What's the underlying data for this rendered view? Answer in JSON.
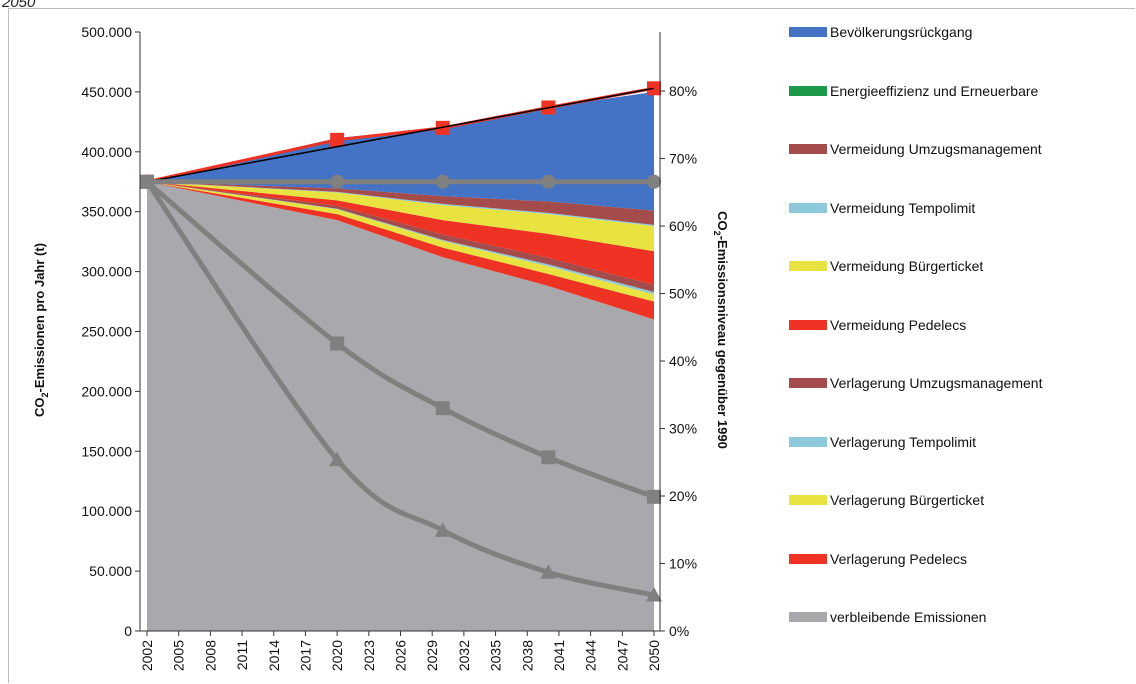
{
  "top_note": "2050",
  "chart_data": {
    "type": "area",
    "title": "",
    "xlabel": "",
    "ylabel": "CO₂-Emissionen pro Jahr (t)",
    "ylabel_parts": {
      "a": "CO",
      "sub": "2",
      "b": "-Emissionen pro Jahr (t)"
    },
    "y2label": "CO₂-Emissionsniveau gegenüber 1990",
    "y2label_parts": {
      "a": "CO",
      "sub": "2",
      "b": "-Emissionsniveau gegenüber 1990"
    },
    "ylim": [
      0,
      500000
    ],
    "y2lim": [
      0,
      0.8875
    ],
    "xlim": [
      2002,
      2050
    ],
    "x_ticks": [
      2002,
      2005,
      2008,
      2011,
      2014,
      2017,
      2020,
      2023,
      2026,
      2029,
      2032,
      2035,
      2038,
      2041,
      2044,
      2047,
      2050
    ],
    "y_ticks": [
      0,
      50000,
      100000,
      150000,
      200000,
      250000,
      300000,
      350000,
      400000,
      450000,
      500000
    ],
    "y_tick_labels": [
      "0",
      "50.000",
      "100.000",
      "150.000",
      "200.000",
      "250.000",
      "300.000",
      "350.000",
      "400.000",
      "450.000",
      "500.000"
    ],
    "y2_ticks": [
      0,
      0.1,
      0.2,
      0.3,
      0.4,
      0.5,
      0.6,
      0.7,
      0.8
    ],
    "y2_tick_labels": [
      "0%",
      "10%",
      "20%",
      "30%",
      "40%",
      "50%",
      "60%",
      "70%",
      "80%"
    ],
    "grid": false,
    "legend_position": "right",
    "x": [
      2002,
      2020,
      2030,
      2040,
      2050
    ],
    "series": [
      {
        "name": "verbleibende Emissionen",
        "color": "#a9a9ad",
        "values": [
          375000,
          343000,
          312000,
          288000,
          260000
        ]
      },
      {
        "name": "Verlagerung Pedelecs",
        "color": "#ee3324",
        "values": [
          0,
          5000,
          8000,
          10000,
          15000
        ]
      },
      {
        "name": "Verlagerung Bürgerticket",
        "color": "#e8e340",
        "values": [
          0,
          4000,
          5500,
          6500,
          6000
        ]
      },
      {
        "name": "Verlagerung Tempolimit",
        "color": "#8ec9db",
        "values": [
          0,
          500,
          1000,
          1500,
          2000
        ]
      },
      {
        "name": "Verlagerung Umzugsmanagement",
        "color": "#a44b4b",
        "values": [
          0,
          2500,
          4500,
          5500,
          6000
        ]
      },
      {
        "name": "Vermeidung Pedelecs",
        "color": "#ee3324",
        "values": [
          0,
          4500,
          12000,
          20000,
          28000
        ]
      },
      {
        "name": "Vermeidung Bürgerticket",
        "color": "#e8e340",
        "values": [
          0,
          6500,
          12500,
          16500,
          21000
        ]
      },
      {
        "name": "Vermeidung Tempolimit",
        "color": "#8ec9db",
        "values": [
          0,
          500,
          1000,
          1000,
          1000
        ]
      },
      {
        "name": "Vermeidung Umzugsmanagement",
        "color": "#a44b4b",
        "values": [
          0,
          3000,
          6500,
          9500,
          12000
        ]
      },
      {
        "name": "Energieeffizienz und Erneuerbare",
        "color": "#1c9a4a",
        "values": [
          0,
          0,
          0,
          0,
          0
        ]
      },
      {
        "name": "Bevölkerungsrückgang",
        "color": "#4472c4",
        "values": [
          0,
          42000,
          57500,
          79000,
          99000
        ]
      }
    ],
    "lines": [
      {
        "color": "#ee3324",
        "marker": "square",
        "axis": "left",
        "values": [
          375000,
          410000,
          420000,
          437000,
          453000
        ]
      },
      {
        "color": "#000000",
        "marker": "none",
        "axis": "left",
        "values": [
          375000,
          453000
        ]
      },
      {
        "color": "#808080",
        "marker": "circle",
        "axis": "left",
        "values": [
          375000,
          375000,
          375000,
          375000,
          375000
        ]
      },
      {
        "color": "#808080",
        "marker": "square",
        "axis": "left",
        "values": [
          375000,
          240000,
          186000,
          145000,
          112000
        ]
      },
      {
        "color": "#808080",
        "marker": "triangle",
        "axis": "left",
        "values": [
          375000,
          143000,
          84000,
          49000,
          30000
        ]
      }
    ],
    "legend_order": [
      "Bevölkerungsrückgang",
      "Energieeffizienz und Erneuerbare",
      "Vermeidung Umzugsmanagement",
      "Vermeidung Tempolimit",
      "Vermeidung Bürgerticket",
      "Vermeidung Pedelecs",
      "Verlagerung Umzugsmanagement",
      "Verlagerung Tempolimit",
      "Verlagerung Bürgerticket",
      "Verlagerung Pedelecs",
      "verbleibende Emissionen"
    ]
  }
}
